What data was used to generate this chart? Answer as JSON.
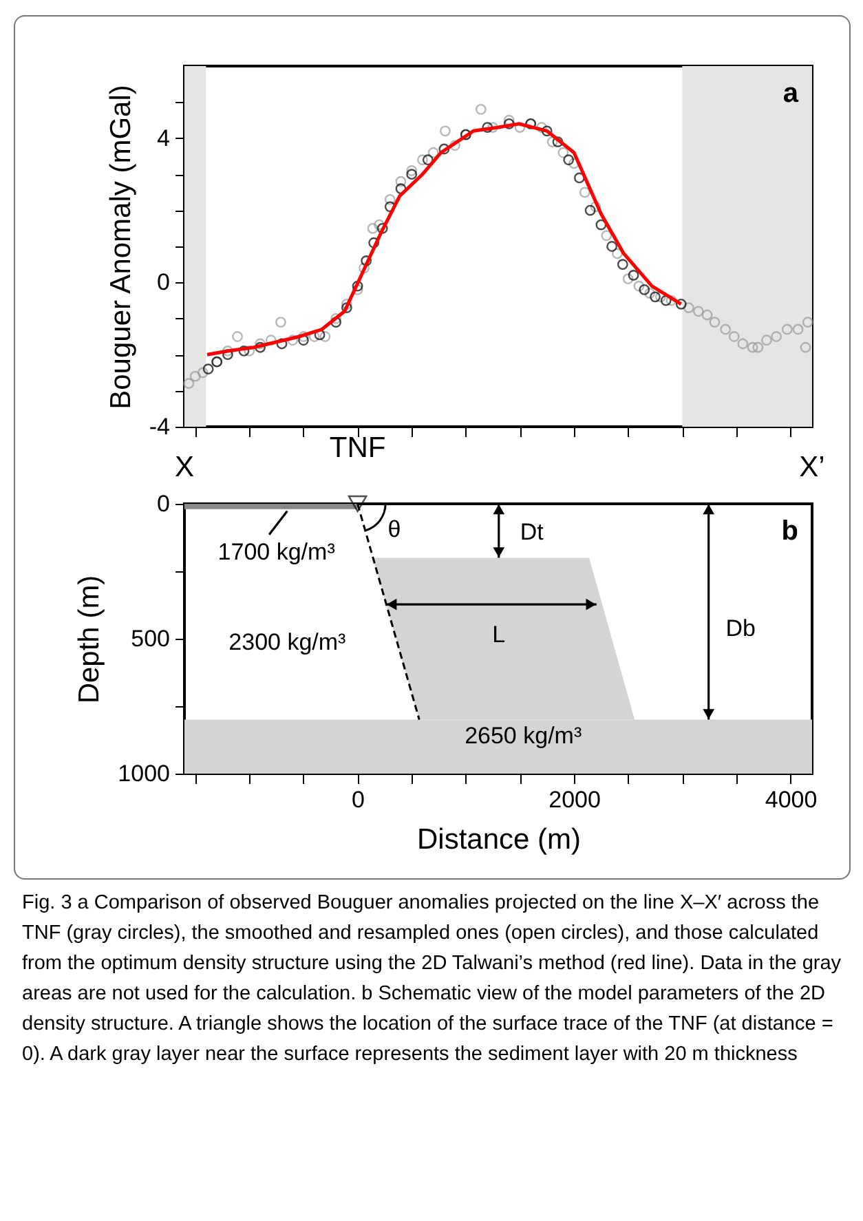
{
  "chart_data": [
    {
      "type": "scatter",
      "title": "a",
      "ylabel": "Bouguer Anomaly (mGal)",
      "xlim": [
        -1600,
        4200
      ],
      "ylim": [
        -4,
        6
      ],
      "xticks": [
        {
          "value": -1500,
          "label": null
        },
        {
          "value": -1000,
          "label": null
        },
        {
          "value": -500,
          "label": null
        },
        0,
        {
          "value": 500,
          "label": null
        },
        {
          "value": 1000,
          "label": null
        },
        {
          "value": 1500,
          "label": null
        },
        2000,
        {
          "value": 2500,
          "label": null
        },
        {
          "value": 3000,
          "label": null
        },
        {
          "value": 3500,
          "label": null
        },
        4000
      ],
      "yticks": [
        -4,
        {
          "value": -3,
          "label": null
        },
        {
          "value": -2,
          "label": null
        },
        {
          "value": -1,
          "label": null
        },
        0,
        {
          "value": 1,
          "label": null
        },
        {
          "value": 2,
          "label": null
        },
        {
          "value": 3,
          "label": null
        },
        4,
        {
          "value": 5,
          "label": null
        }
      ],
      "tick_labels": "y",
      "bands": [
        {
          "axis": "x",
          "from": -1600,
          "to": -1400,
          "color": "#e5e5e5"
        },
        {
          "axis": "x",
          "from": 3000,
          "to": 4200,
          "color": "#e5e5e5"
        }
      ],
      "series": [
        {
          "marker": "circle",
          "color": "#999999",
          "x": [
            -1560,
            -1500,
            -1430,
            -1300,
            -1200,
            -1110,
            -1000,
            -900,
            -800,
            -710,
            -600,
            -500,
            -400,
            -300,
            -200,
            -100,
            0,
            60,
            140,
            200,
            300,
            400,
            500,
            600,
            700,
            810,
            900,
            1000,
            1140,
            1250,
            1400,
            1500,
            1600,
            1700,
            1800,
            1900,
            2000,
            2100,
            2200,
            2300,
            2400,
            2500,
            2600,
            2700,
            2800,
            2900,
            3060,
            3150,
            3230,
            3300,
            3400,
            3480,
            3560,
            3650,
            3700,
            3780,
            3870,
            3970,
            4070,
            4140,
            4160
          ],
          "values": [
            -2.8,
            -2.6,
            -2.5,
            -2.2,
            -1.9,
            -1.5,
            -1.9,
            -1.7,
            -1.6,
            -1.1,
            -1.6,
            -1.5,
            -1.5,
            -1.5,
            -1.0,
            -0.6,
            -0.2,
            0.4,
            1.5,
            1.6,
            2.3,
            2.8,
            3.1,
            3.4,
            3.6,
            4.2,
            3.8,
            4.1,
            4.8,
            4.3,
            4.5,
            4.3,
            4.4,
            4.3,
            3.9,
            3.6,
            3.3,
            2.5,
            2.1,
            1.3,
            0.8,
            0.1,
            -0.1,
            -0.3,
            -0.4,
            -0.5,
            -0.7,
            -0.8,
            -0.9,
            -1.1,
            -1.3,
            -1.5,
            -1.7,
            -1.8,
            -1.8,
            -1.6,
            -1.5,
            -1.3,
            -1.3,
            -1.8,
            -1.1
          ]
        },
        {
          "marker": "circle",
          "color": "#000000",
          "x": [
            -1380,
            -1300,
            -1200,
            -1050,
            -900,
            -700,
            -500,
            -350,
            -200,
            -100,
            0,
            80,
            150,
            230,
            300,
            400,
            500,
            650,
            800,
            1000,
            1200,
            1400,
            1600,
            1750,
            1850,
            1950,
            2050,
            2150,
            2250,
            2350,
            2450,
            2550,
            2650,
            2750,
            2850,
            2990
          ],
          "values": [
            -2.4,
            -2.2,
            -2.0,
            -1.9,
            -1.8,
            -1.7,
            -1.6,
            -1.45,
            -1.1,
            -0.7,
            -0.1,
            0.6,
            1.1,
            1.5,
            2.1,
            2.6,
            3.0,
            3.4,
            3.7,
            4.1,
            4.3,
            4.4,
            4.4,
            4.2,
            3.9,
            3.4,
            2.9,
            2.0,
            1.6,
            1.0,
            0.5,
            0.2,
            -0.2,
            -0.4,
            -0.5,
            -0.6
          ]
        },
        {
          "type": "line",
          "color": "#ff0000",
          "x": [
            -1390,
            -1200,
            -960,
            -540,
            -330,
            -120,
            50,
            220,
            390,
            600,
            770,
            1070,
            1300,
            1490,
            1750,
            2000,
            2250,
            2460,
            2720,
            2990
          ],
          "values": [
            -2.0,
            -1.9,
            -1.8,
            -1.5,
            -1.3,
            -0.8,
            0.3,
            1.4,
            2.4,
            3.0,
            3.6,
            4.2,
            4.3,
            4.4,
            4.2,
            3.6,
            1.9,
            0.8,
            -0.1,
            -0.6
          ]
        }
      ]
    },
    {
      "type": "area",
      "title": "b",
      "xlabel": "Distance (m)",
      "ylabel": "Depth (m)",
      "xlim": [
        -1600,
        4200
      ],
      "ylim": [
        1000,
        0
      ],
      "xticks": [
        {
          "value": -1500,
          "label": null
        },
        {
          "value": -1000,
          "label": null
        },
        {
          "value": -500,
          "label": null
        },
        0,
        {
          "value": 500,
          "label": null
        },
        {
          "value": 1000,
          "label": null
        },
        {
          "value": 1500,
          "label": null
        },
        2000,
        {
          "value": 2500,
          "label": null
        },
        {
          "value": 3000,
          "label": null
        },
        {
          "value": 3500,
          "label": null
        },
        4000
      ],
      "yticks": [
        0,
        {
          "value": 250,
          "label": null
        },
        500,
        {
          "value": 750,
          "label": null
        },
        1000
      ],
      "bands": [
        {
          "axis": "y",
          "from": 800,
          "to": 1000,
          "color": "#d4d4d4"
        }
      ],
      "series": [
        {
          "color": "#888888",
          "x": [
            -1600,
            0
          ],
          "values": [
            20,
            20
          ]
        },
        {
          "type": "line",
          "line_style": "dashed",
          "color": "#000000",
          "x": [
            0,
            570
          ],
          "values": [
            0,
            800
          ]
        },
        {
          "type": "scatter",
          "marker": "triangle",
          "name": "TNF",
          "color": "#000000",
          "x": [
            0
          ],
          "values": [
            0
          ]
        }
      ],
      "annotations": [
        "X",
        "X’",
        "1700 kg/m³",
        "θ",
        "Dt",
        "L",
        "Db",
        "2300 kg/m³",
        "2650 kg/m³",
        "Fig. 3 a Comparison of observed Bouguer anomalies projected on the line X–X′ across the TNF (gray circles), the smoothed and resampled ones (open circles), and those calculated from the optimum density structure using the 2D Talwani’s method (red line). Data in the gray areas are not used for the calculation. b Schematic view of the model parameters of the 2D density structure. A triangle shows the location of the surface trace of the TNF (at distance = 0). A dark gray layer near the surface represents the sediment layer with 20 m thickness"
      ]
    }
  ]
}
